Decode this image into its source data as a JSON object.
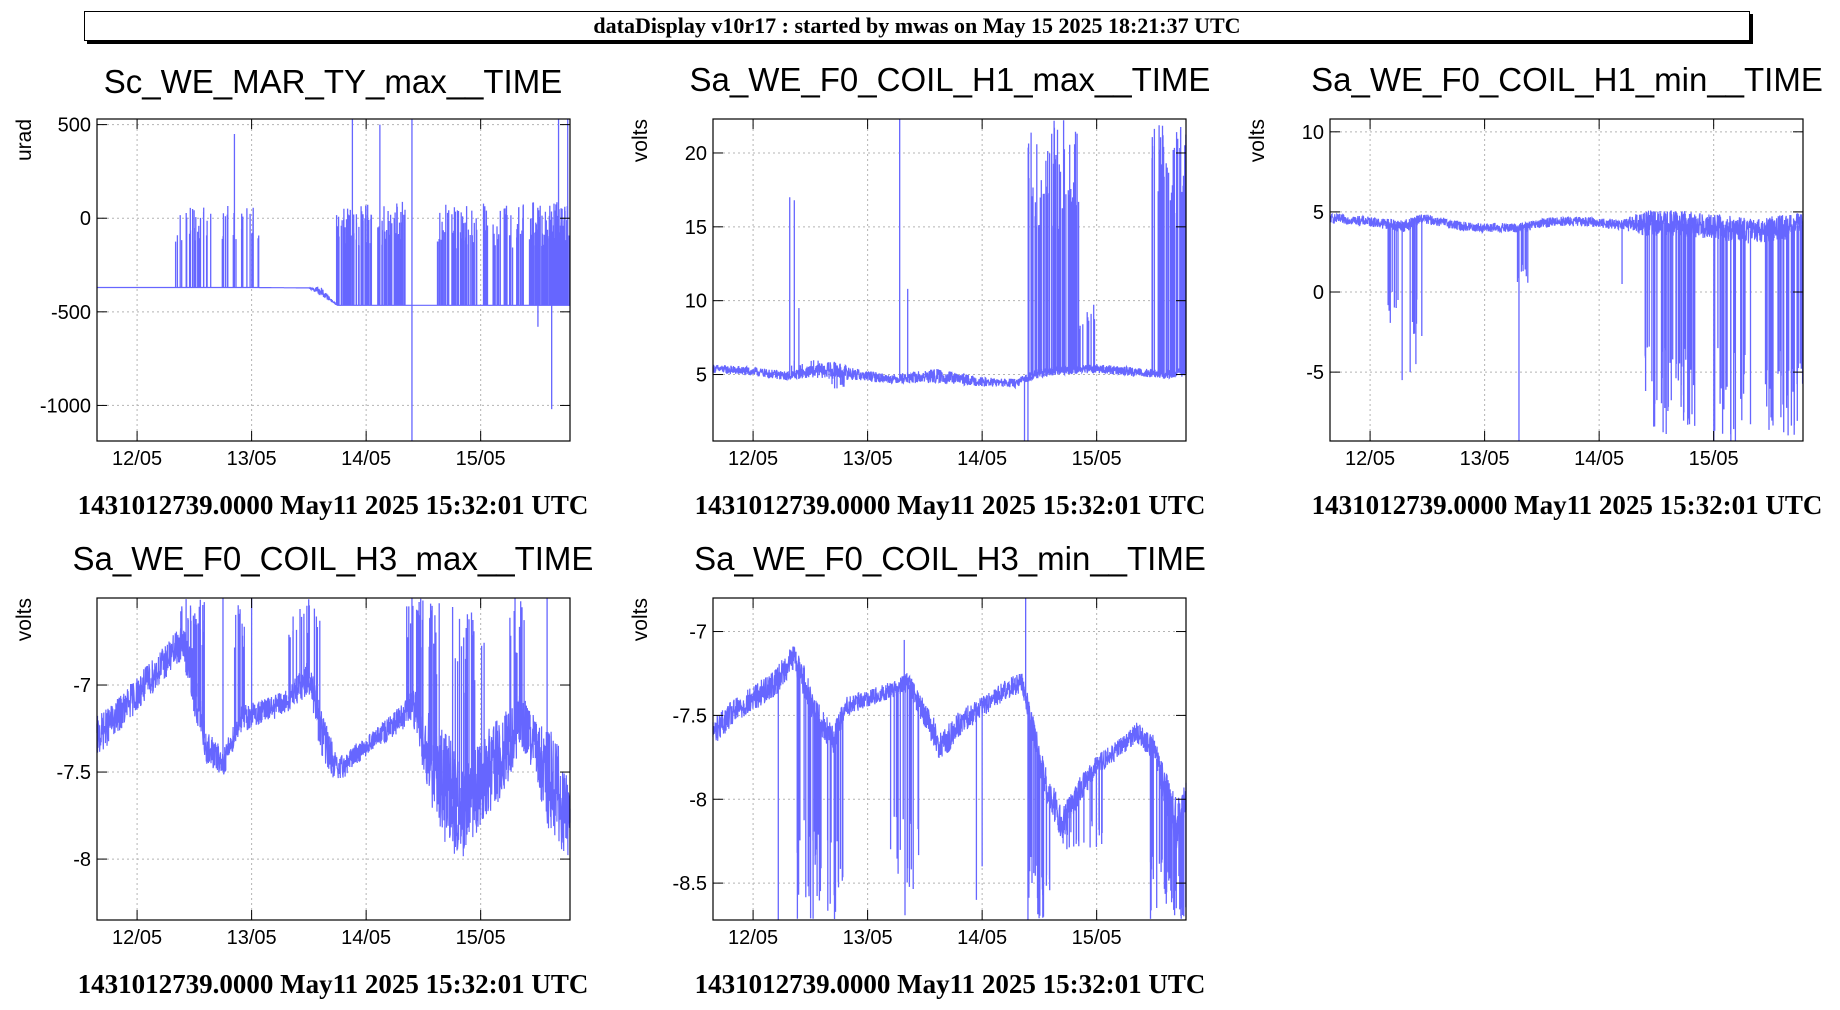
{
  "header": {
    "banner": "dataDisplay v10r17 : started by mwas on May 15 2025 18:21:37 UTC"
  },
  "colors": {
    "series": "#6666ff",
    "grid": "#b4b4b4",
    "axis": "#000000"
  },
  "chart_data": [
    {
      "type": "line",
      "title": "Sc_WE_MAR_TY_max__TIME",
      "ylabel": "urad",
      "footer": "1431012739.0000 May11 2025 15:32:01 UTC",
      "xlim": [
        11.65,
        15.78
      ],
      "ylim": [
        -1190,
        530
      ],
      "x_ticks": [
        12,
        13,
        14,
        15
      ],
      "x_tick_labels": [
        "12/05",
        "13/05",
        "14/05",
        "15/05"
      ],
      "y_ticks": [
        500,
        0,
        -500,
        -1000
      ],
      "y_tick_labels": [
        "500",
        "0",
        "-500",
        "-1000"
      ],
      "series": [
        {
          "x": [
            11.65,
            12.0,
            12.5,
            13.0,
            13.4,
            13.5,
            13.6,
            13.75,
            13.9,
            14.2,
            14.4,
            14.6,
            14.9,
            15.2,
            15.5,
            15.78
          ],
          "y": [
            -370,
            -370,
            -370,
            -370,
            -372,
            -372,
            -390,
            -465,
            -465,
            -465,
            -465,
            -465,
            -465,
            -465,
            -465,
            -465
          ],
          "band": [
            0,
            0,
            0,
            0,
            0,
            0,
            25,
            0,
            0,
            0,
            0,
            0,
            0,
            0,
            0,
            0
          ],
          "bursts": [
            [
              12.33,
              12.65,
              24,
              60,
              0
            ],
            [
              12.74,
              13.08,
              22,
              70,
              0
            ],
            [
              13.72,
              14.05,
              60,
              90,
              0
            ],
            [
              14.1,
              14.35,
              40,
              90,
              0
            ],
            [
              14.62,
              14.98,
              48,
              80,
              0
            ],
            [
              15.02,
              15.38,
              40,
              80,
              0
            ],
            [
              15.42,
              15.78,
              120,
              90,
              0
            ]
          ],
          "spikes": [
            [
              12.85,
              450
            ],
            [
              13.88,
              530
            ],
            [
              14.4,
              530
            ],
            [
              14.4,
              -1190
            ],
            [
              14.12,
              500
            ],
            [
              15.62,
              -1020
            ],
            [
              15.68,
              530
            ],
            [
              15.76,
              530
            ],
            [
              15.5,
              -580
            ]
          ]
        }
      ]
    },
    {
      "type": "line",
      "title": "Sa_WE_F0_COIL_H1_max__TIME",
      "ylabel": "volts",
      "footer": "1431012739.0000 May11 2025 15:32:01 UTC",
      "xlim": [
        11.65,
        15.78
      ],
      "ylim": [
        0.5,
        22.3
      ],
      "x_ticks": [
        12,
        13,
        14,
        15
      ],
      "x_tick_labels": [
        "12/05",
        "13/05",
        "14/05",
        "15/05"
      ],
      "y_ticks": [
        20,
        15,
        10,
        5
      ],
      "y_tick_labels": [
        "20",
        "15",
        "10",
        "5"
      ],
      "series": [
        {
          "x": [
            11.65,
            12.0,
            12.3,
            12.5,
            12.7,
            12.9,
            13.2,
            13.6,
            14.0,
            14.3,
            14.45,
            14.7,
            15.0,
            15.3,
            15.6,
            15.78
          ],
          "y": [
            5.4,
            5.2,
            4.9,
            5.2,
            5.3,
            5.0,
            4.7,
            4.9,
            4.5,
            4.4,
            5.0,
            5.3,
            5.4,
            5.2,
            5.0,
            5.2
          ],
          "band": [
            0.3,
            0.3,
            0.3,
            0.4,
            0.6,
            0.4,
            0.3,
            0.5,
            0.3,
            0.3,
            0.3,
            0.3,
            0.3,
            0.3,
            0.3,
            0.3
          ],
          "bursts": [
            [
              12.33,
              12.65,
              10,
              6,
              0
            ],
            [
              12.68,
              12.8,
              8,
              4,
              0
            ],
            [
              14.4,
              14.85,
              60,
              22.3,
              0
            ],
            [
              14.85,
              15.0,
              10,
              10,
              0
            ],
            [
              15.48,
              15.78,
              50,
              22.3,
              0
            ]
          ],
          "spikes": [
            [
              12.32,
              17.0
            ],
            [
              12.36,
              16.8
            ],
            [
              12.4,
              9.5
            ],
            [
              13.28,
              22.3
            ],
            [
              13.35,
              10.8
            ],
            [
              14.37,
              0.5
            ],
            [
              14.4,
              0.5
            ]
          ]
        }
      ]
    },
    {
      "type": "line",
      "title": "Sa_WE_F0_COIL_H1_min__TIME",
      "ylabel": "volts",
      "footer": "1431012739.0000 May11 2025 15:32:01 UTC",
      "xlim": [
        11.65,
        15.78
      ],
      "ylim": [
        -9.3,
        10.8
      ],
      "x_ticks": [
        12,
        13,
        14,
        15
      ],
      "x_tick_labels": [
        "12/05",
        "13/05",
        "14/05",
        "15/05"
      ],
      "y_ticks": [
        10,
        5,
        0,
        -5
      ],
      "y_tick_labels": [
        "10",
        "5",
        "0",
        "-5"
      ],
      "series": [
        {
          "x": [
            11.65,
            12.0,
            12.3,
            12.45,
            12.6,
            12.8,
            13.0,
            13.3,
            13.6,
            13.9,
            14.2,
            14.4,
            14.7,
            15.0,
            15.3,
            15.6,
            15.78
          ],
          "y": [
            4.6,
            4.4,
            4.1,
            4.6,
            4.4,
            4.1,
            4.0,
            4.0,
            4.4,
            4.4,
            4.2,
            4.3,
            4.3,
            4.1,
            3.8,
            4.0,
            4.2
          ],
          "band": [
            0.3,
            0.3,
            0.4,
            0.3,
            0.3,
            0.3,
            0.3,
            0.3,
            0.3,
            0.3,
            0.3,
            0.8,
            0.8,
            0.8,
            0.8,
            0.8,
            0.8
          ],
          "bursts": [
            [
              12.15,
              12.25,
              8,
              -2.0,
              1
            ],
            [
              12.37,
              12.48,
              6,
              -3.0,
              1
            ],
            [
              13.25,
              13.4,
              8,
              0.5,
              1
            ],
            [
              14.4,
              14.85,
              55,
              -9.3,
              1
            ],
            [
              15.0,
              15.35,
              22,
              -9.3,
              1
            ],
            [
              15.45,
              15.78,
              40,
              -9.3,
              1
            ]
          ],
          "spikes": [
            [
              12.28,
              -5.5
            ],
            [
              12.35,
              -5.0
            ],
            [
              12.4,
              -4.5
            ],
            [
              13.3,
              -9.3
            ],
            [
              14.2,
              0.5
            ],
            [
              15.15,
              -9.3
            ]
          ]
        }
      ]
    },
    {
      "type": "line",
      "title": "Sa_WE_F0_COIL_H3_max__TIME",
      "ylabel": "volts",
      "footer": "1431012739.0000 May11 2025 15:32:01 UTC",
      "xlim": [
        11.65,
        15.78
      ],
      "ylim": [
        -8.35,
        -6.5
      ],
      "x_ticks": [
        12,
        13,
        14,
        15
      ],
      "x_tick_labels": [
        "12/05",
        "13/05",
        "14/05",
        "15/05"
      ],
      "y_ticks": [
        -7,
        -7.5,
        -8
      ],
      "y_tick_labels": [
        "-7",
        "-7.5",
        "-8"
      ],
      "series": [
        {
          "x": [
            11.65,
            11.8,
            12.0,
            12.2,
            12.4,
            12.5,
            12.6,
            12.75,
            12.9,
            13.1,
            13.3,
            13.5,
            13.6,
            13.75,
            13.9,
            14.1,
            14.3,
            14.4,
            14.55,
            14.7,
            14.85,
            15.0,
            15.2,
            15.35,
            15.5,
            15.6,
            15.7,
            15.78
          ],
          "y": [
            -7.3,
            -7.2,
            -7.05,
            -6.9,
            -6.75,
            -7.0,
            -7.35,
            -7.45,
            -7.2,
            -7.15,
            -7.1,
            -6.95,
            -7.25,
            -7.5,
            -7.4,
            -7.3,
            -7.2,
            -7.1,
            -7.4,
            -7.6,
            -7.75,
            -7.55,
            -7.4,
            -7.2,
            -7.4,
            -7.55,
            -7.65,
            -7.75
          ],
          "band": [
            0.12,
            0.1,
            0.1,
            0.1,
            0.1,
            0.18,
            0.1,
            0.08,
            0.08,
            0.07,
            0.07,
            0.1,
            0.15,
            0.08,
            0.06,
            0.06,
            0.08,
            0.1,
            0.25,
            0.35,
            0.25,
            0.25,
            0.25,
            0.15,
            0.2,
            0.3,
            0.3,
            0.25
          ],
          "bursts": [
            [
              12.38,
              12.6,
              28,
              -6.5,
              0
            ],
            [
              12.85,
              12.95,
              10,
              -6.5,
              0
            ],
            [
              13.3,
              13.6,
              18,
              -6.5,
              0
            ],
            [
              14.35,
              14.65,
              30,
              -6.5,
              0
            ],
            [
              14.75,
              15.05,
              20,
              -6.5,
              0
            ],
            [
              15.25,
              15.4,
              12,
              -6.5,
              0
            ]
          ],
          "spikes": [
            [
              12.75,
              -6.5
            ],
            [
              13.0,
              -6.5
            ],
            [
              14.4,
              -6.5
            ],
            [
              15.58,
              -6.5
            ],
            [
              15.3,
              -6.5
            ]
          ]
        }
      ]
    },
    {
      "type": "line",
      "title": "Sa_WE_F0_COIL_H3_min__TIME",
      "ylabel": "volts",
      "footer": "1431012739.0000 May11 2025 15:32:01 UTC",
      "xlim": [
        11.65,
        15.78
      ],
      "ylim": [
        -8.72,
        -6.8
      ],
      "x_ticks": [
        12,
        13,
        14,
        15
      ],
      "x_tick_labels": [
        "12/05",
        "13/05",
        "14/05",
        "15/05"
      ],
      "y_ticks": [
        -7,
        -7.5,
        -8,
        -8.5
      ],
      "y_tick_labels": [
        "-7",
        "-7.5",
        "-8",
        "-8.5"
      ],
      "series": [
        {
          "x": [
            11.65,
            11.8,
            12.0,
            12.2,
            12.35,
            12.45,
            12.55,
            12.7,
            12.8,
            13.0,
            13.2,
            13.35,
            13.5,
            13.65,
            13.8,
            14.0,
            14.2,
            14.35,
            14.45,
            14.55,
            14.7,
            14.85,
            15.0,
            15.2,
            15.35,
            15.5,
            15.6,
            15.7,
            15.78
          ],
          "y": [
            -7.6,
            -7.5,
            -7.4,
            -7.3,
            -7.15,
            -7.3,
            -7.5,
            -7.65,
            -7.45,
            -7.4,
            -7.35,
            -7.3,
            -7.5,
            -7.7,
            -7.55,
            -7.45,
            -7.35,
            -7.3,
            -7.6,
            -7.9,
            -8.15,
            -7.95,
            -7.8,
            -7.7,
            -7.6,
            -7.7,
            -7.95,
            -8.15,
            -8.0
          ],
          "band": [
            0.08,
            0.08,
            0.08,
            0.08,
            0.08,
            0.1,
            0.1,
            0.08,
            0.06,
            0.05,
            0.05,
            0.06,
            0.08,
            0.1,
            0.08,
            0.06,
            0.06,
            0.06,
            0.08,
            0.1,
            0.1,
            0.08,
            0.06,
            0.06,
            0.06,
            0.08,
            0.12,
            0.15,
            0.12
          ],
          "bursts": [
            [
              12.35,
              12.6,
              24,
              -8.72,
              1
            ],
            [
              12.65,
              12.8,
              14,
              -8.72,
              1
            ],
            [
              13.2,
              13.45,
              18,
              -8.72,
              1
            ],
            [
              14.4,
              14.6,
              26,
              -8.72,
              1
            ],
            [
              14.7,
              15.05,
              20,
              -8.3,
              1
            ],
            [
              15.45,
              15.78,
              40,
              -8.72,
              1
            ]
          ],
          "spikes": [
            [
              12.22,
              -8.72
            ],
            [
              13.32,
              -7.05
            ],
            [
              14.38,
              -6.8
            ],
            [
              14.4,
              -8.72
            ],
            [
              14.0,
              -8.4
            ],
            [
              13.95,
              -8.6
            ]
          ]
        }
      ]
    }
  ]
}
